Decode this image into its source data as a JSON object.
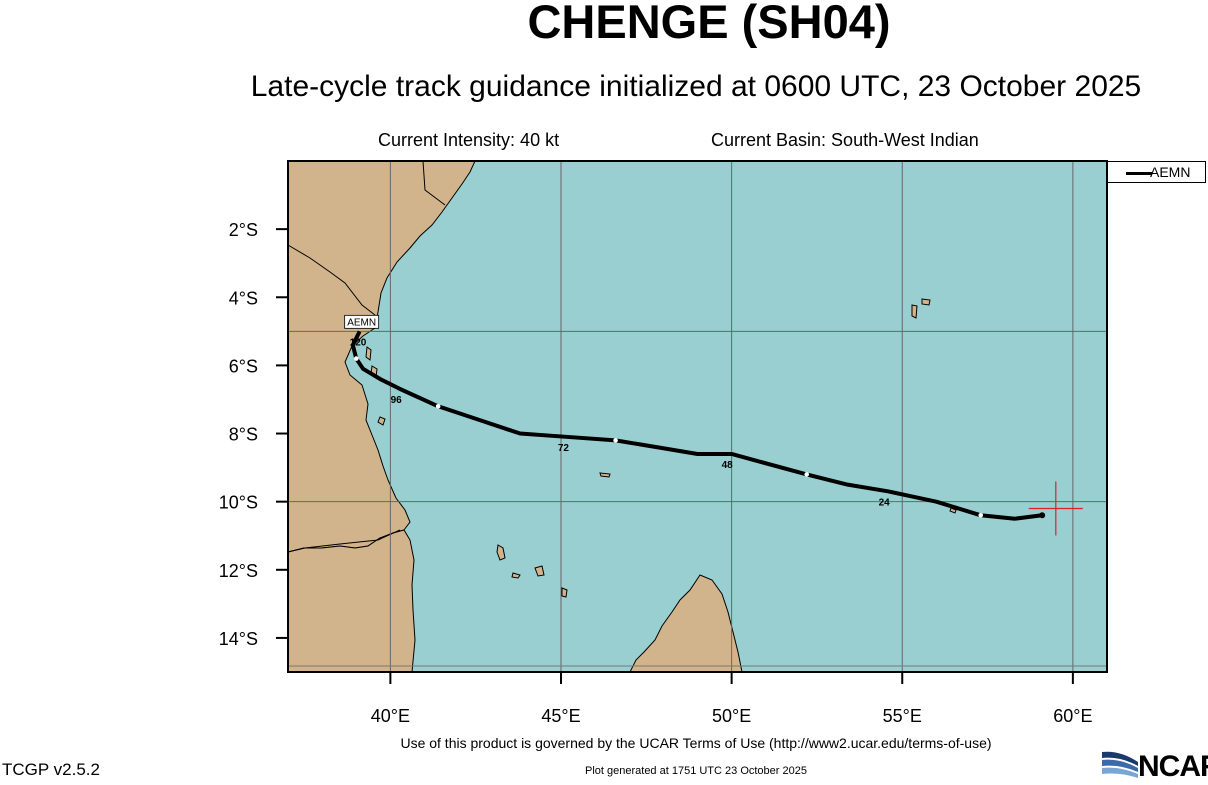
{
  "header": {
    "title": "CHENGE (SH04)",
    "subtitle": "Late-cycle track guidance initialized at 0600 UTC, 23 October 2025",
    "intensity": "Current Intensity: 40 kt",
    "basin": "Current Basin: South-West Indian"
  },
  "map": {
    "lon_range": [
      37.0,
      61.0
    ],
    "lat_range": [
      -15.0,
      0.0
    ],
    "lat_ticks": [
      "2°S",
      "4°S",
      "6°S",
      "8°S",
      "10°S",
      "12°S",
      "14°S"
    ],
    "lat_tick_values": [
      -2,
      -4,
      -6,
      -8,
      -10,
      -12,
      -14
    ],
    "lon_ticks": [
      "40°E",
      "45°E",
      "50°E",
      "55°E",
      "60°E"
    ],
    "lon_tick_values": [
      40,
      45,
      50,
      55,
      60
    ],
    "ocean_color": "#99cfd0",
    "land_color": "#d2b48c",
    "grid": true,
    "current_position": {
      "lon": 59.5,
      "lat": -10.2,
      "marker": "red-cross"
    }
  },
  "legend": {
    "model": "AEMN"
  },
  "track": {
    "model": "AEMN",
    "color": "#000000",
    "points": [
      {
        "lon": 59.1,
        "lat": -10.4
      },
      {
        "lon": 58.3,
        "lat": -10.5
      },
      {
        "lon": 57.3,
        "lat": -10.4
      },
      {
        "lon": 56.0,
        "lat": -10.0
      },
      {
        "lon": 54.6,
        "lat": -9.7
      },
      {
        "lon": 53.4,
        "lat": -9.5
      },
      {
        "lon": 52.2,
        "lat": -9.2
      },
      {
        "lon": 50.0,
        "lat": -8.6
      },
      {
        "lon": 49.0,
        "lat": -8.6
      },
      {
        "lon": 47.8,
        "lat": -8.4
      },
      {
        "lon": 46.6,
        "lat": -8.2
      },
      {
        "lon": 45.2,
        "lat": -8.1
      },
      {
        "lon": 43.8,
        "lat": -8.0
      },
      {
        "lon": 42.6,
        "lat": -7.6
      },
      {
        "lon": 41.4,
        "lat": -7.2
      },
      {
        "lon": 40.3,
        "lat": -6.7
      },
      {
        "lon": 39.7,
        "lat": -6.4
      },
      {
        "lon": 39.2,
        "lat": -6.1
      },
      {
        "lon": 39.0,
        "lat": -5.8
      },
      {
        "lon": 38.9,
        "lat": -5.4
      },
      {
        "lon": 39.1,
        "lat": -5.0
      }
    ],
    "tau_labels": [
      {
        "text": "24",
        "lon": 54.6,
        "lat": -9.7
      },
      {
        "text": "48",
        "lon": 50.0,
        "lat": -8.6
      },
      {
        "text": "72",
        "lon": 45.2,
        "lat": -8.1
      },
      {
        "text": "96",
        "lon": 40.3,
        "lat": -6.7
      },
      {
        "text": "120",
        "lon": 39.1,
        "lat": -5.0
      }
    ],
    "end_label": "AEMN"
  },
  "footer": {
    "terms": "Use of this product is governed by the UCAR Terms of Use (http://www2.ucar.edu/terms-of-use)",
    "version": "TCGP v2.5.2",
    "generated": "Plot generated at 1751 UTC   23 October 2025",
    "logo": "NCAR"
  }
}
